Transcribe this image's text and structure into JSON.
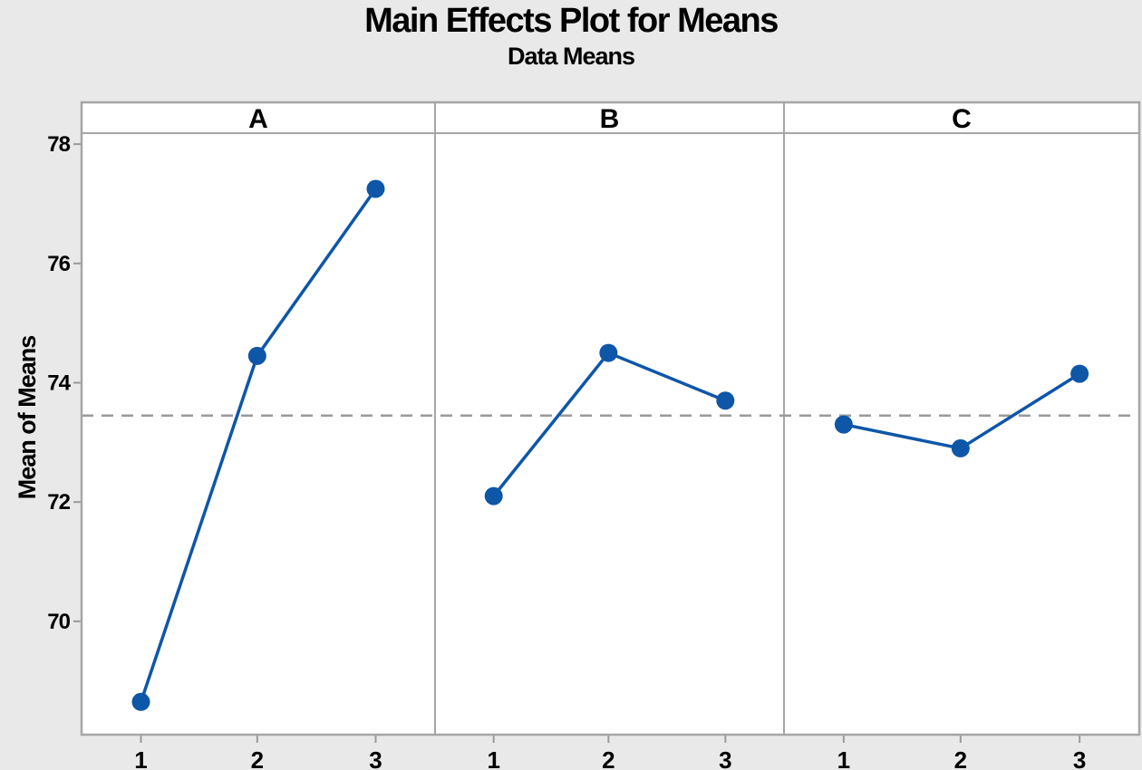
{
  "chart_data": {
    "type": "line",
    "title": "Main Effects Plot for Means",
    "subtitle": "Data Means",
    "ylabel": "Mean of Means",
    "xlabel": "",
    "legend": "none",
    "grid": "off",
    "panels": [
      {
        "label": "A",
        "categories": [
          "1",
          "2",
          "3"
        ],
        "values": [
          68.65,
          74.45,
          77.25
        ]
      },
      {
        "label": "B",
        "categories": [
          "1",
          "2",
          "3"
        ],
        "values": [
          72.1,
          74.5,
          73.7
        ]
      },
      {
        "label": "C",
        "categories": [
          "1",
          "2",
          "3"
        ],
        "values": [
          73.3,
          72.9,
          74.15
        ]
      }
    ],
    "yticks": [
      78,
      76,
      74,
      72,
      70
    ],
    "ylim": [
      68.1,
      78.7
    ],
    "reference_line": {
      "value": 73.45,
      "style": "dashed",
      "meaning": "grand mean"
    },
    "colors": {
      "series": "#0e56a8",
      "reference": "#9a9a9a",
      "frame": "#a6a6a6",
      "tick": "#9a9a9a",
      "background": "#e9e9e9",
      "panel_background": "#ffffff",
      "text": "#000000"
    }
  }
}
